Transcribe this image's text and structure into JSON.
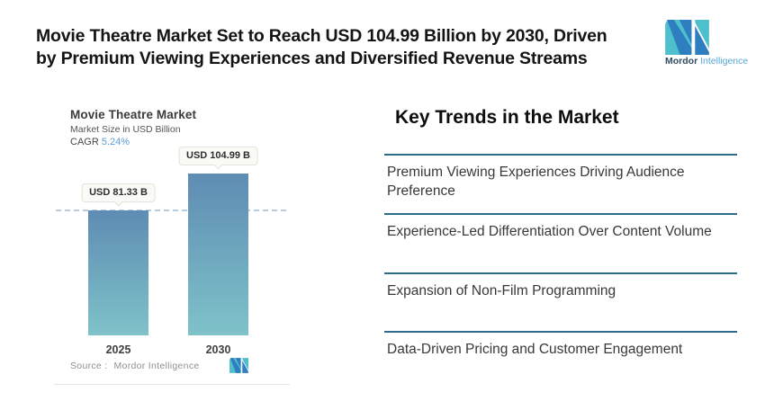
{
  "header": {
    "title": "Movie Theatre Market Set to Reach USD 104.99 Billion by 2030, Driven by Premium Viewing Experiences and Diversified Revenue Streams",
    "title_lines": [
      "Movie Theatre Market Set to Reach USD 104.99 Billion by 2030, Driven",
      "by Premium Viewing Experiences and Diversified Revenue Streams"
    ],
    "logo": {
      "brand_bold": "Mordor",
      "brand_light": "Intelligence"
    }
  },
  "chart": {
    "title": "Movie Theatre Market",
    "subtitle": "Market Size in USD Billion",
    "cagr_label": "CAGR",
    "cagr_value": "5.24%",
    "source_label": "Source :",
    "source_value": "Mordor Intelligence"
  },
  "chart_data": {
    "type": "bar",
    "title": "Movie Theatre Market",
    "ylabel": "Market Size in USD Billion",
    "categories": [
      "2025",
      "2030"
    ],
    "values": [
      81.33,
      104.99
    ],
    "value_labels": [
      "USD 81.33 B",
      "USD 104.99 B"
    ],
    "cagr_percent": 5.24,
    "dashed_reference_value": 81.33,
    "legend": "none",
    "grid": "off",
    "bar_gradient": [
      "#5E8CB3",
      "#7FC2C9"
    ]
  },
  "trends": {
    "heading": "Key Trends in the Market",
    "items": [
      "Premium Viewing Experiences Driving Audience Preference",
      "Experience-Led Differentiation Over Content Volume",
      "Expansion of Non-Film Programming",
      "Data-Driven Pricing and Customer Engagement"
    ]
  },
  "colors": {
    "accent_teal": "#4EC0CD",
    "accent_blue": "#2E7EC0",
    "bar_top": "#5E8CB3",
    "bar_bottom": "#7FC2C9",
    "dashed": "#B6CCE0",
    "separator": "#2C6B8A",
    "cagr_blue": "#5B9BD5"
  }
}
